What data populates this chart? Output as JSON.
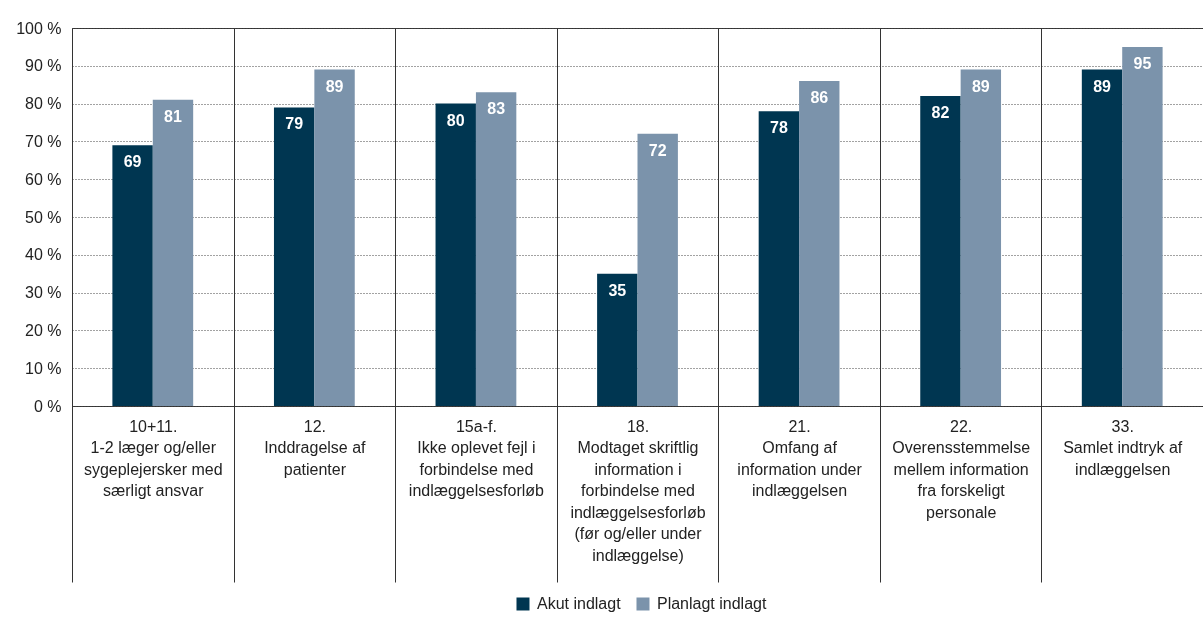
{
  "chart_data": {
    "type": "bar",
    "categories": [
      "10+11.\n1-2 læger og/eller sygeplejersker med særligt ansvar",
      "12.\nInddragelse af patienter",
      "15a-f.\nIkke oplevet fejl i forbindelse med indlæggelsesforløb",
      "18.\nModtaget skriftlig information i forbindelse med indlæggelsesforløb (før og/eller under indlæggelse)",
      "21.\nOmfang af information under indlæggelsen",
      "22.\nOverensstemmelse mellem information fra forskeligt personale",
      "33.\nSamlet indtryk af indlæggelsen"
    ],
    "series": [
      {
        "name": "Akut indlagt",
        "color": "#003651",
        "values": [
          69,
          79,
          80,
          35,
          78,
          82,
          89
        ]
      },
      {
        "name": "Planlagt indlagt",
        "color": "#7b93ab",
        "values": [
          81,
          89,
          83,
          72,
          86,
          89,
          95
        ]
      }
    ],
    "ylim": [
      0,
      100
    ],
    "yticks": [
      {
        "value": 0,
        "label": "0 %"
      },
      {
        "value": 10,
        "label": "10 %"
      },
      {
        "value": 20,
        "label": "20 %"
      },
      {
        "value": 30,
        "label": "30 %"
      },
      {
        "value": 40,
        "label": "40 %"
      },
      {
        "value": 50,
        "label": "50 %"
      },
      {
        "value": 60,
        "label": "60 %"
      },
      {
        "value": 70,
        "label": "70 %"
      },
      {
        "value": 80,
        "label": "80 %"
      },
      {
        "value": 90,
        "label": "90 %"
      },
      {
        "value": 100,
        "label": "100 %"
      }
    ],
    "grid": "y",
    "legend": "bottom",
    "data_labels": true
  }
}
